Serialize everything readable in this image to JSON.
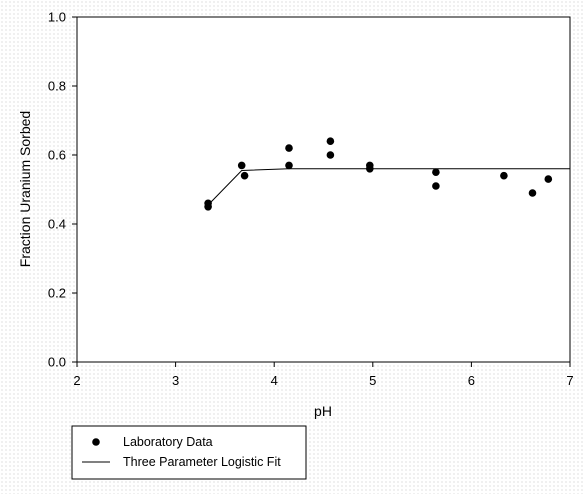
{
  "colors": {
    "background": "#ffffff",
    "plot_area": "#ffffff",
    "axis": "#000000",
    "marker": "#000000",
    "fit_line": "#000000"
  },
  "chart_data": {
    "type": "scatter",
    "title": "",
    "xlabel": "pH",
    "ylabel": "Fraction Uranium Sorbed",
    "xlim": [
      2,
      7
    ],
    "ylim": [
      0.0,
      1.0
    ],
    "x_ticks": [
      "2",
      "3",
      "4",
      "5",
      "6",
      "7"
    ],
    "y_ticks": [
      "0.0",
      "0.2",
      "0.4",
      "0.6",
      "0.8",
      "1.0"
    ],
    "grid": false,
    "legend_position": "bottom-left",
    "series": [
      {
        "name": "Laboratory Data",
        "kind": "scatter",
        "marker": "filled-circle",
        "points": [
          {
            "x": 3.33,
            "y": 0.46
          },
          {
            "x": 3.33,
            "y": 0.45
          },
          {
            "x": 3.67,
            "y": 0.57
          },
          {
            "x": 3.7,
            "y": 0.54
          },
          {
            "x": 4.15,
            "y": 0.62
          },
          {
            "x": 4.15,
            "y": 0.57
          },
          {
            "x": 4.57,
            "y": 0.64
          },
          {
            "x": 4.57,
            "y": 0.6
          },
          {
            "x": 4.97,
            "y": 0.57
          },
          {
            "x": 4.97,
            "y": 0.56
          },
          {
            "x": 5.64,
            "y": 0.55
          },
          {
            "x": 5.64,
            "y": 0.51
          },
          {
            "x": 6.33,
            "y": 0.54
          },
          {
            "x": 6.62,
            "y": 0.49
          },
          {
            "x": 6.78,
            "y": 0.53
          }
        ]
      },
      {
        "name": "Three Parameter Logistic Fit",
        "kind": "line",
        "points": [
          {
            "x": 3.33,
            "y": 0.455
          },
          {
            "x": 3.67,
            "y": 0.555
          },
          {
            "x": 4.15,
            "y": 0.56
          },
          {
            "x": 7.0,
            "y": 0.56
          }
        ]
      }
    ]
  }
}
